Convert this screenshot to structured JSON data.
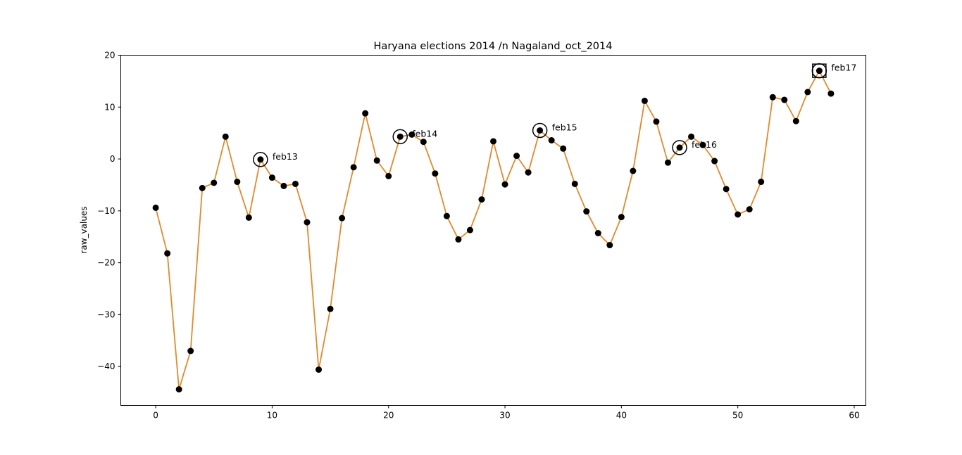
{
  "chart_data": {
    "type": "line",
    "title": "Haryana elections 2014 /n Nagaland_oct_2014",
    "xlabel": "",
    "ylabel": "raw_values",
    "xlim": [
      -3,
      61
    ],
    "ylim": [
      -47.5,
      20
    ],
    "xticks": [
      0,
      10,
      20,
      30,
      40,
      50,
      60
    ],
    "yticks": [
      -40,
      -30,
      -20,
      -10,
      0,
      10,
      20
    ],
    "grid": false,
    "colors": {
      "line": "#e08a2f",
      "marker": "#000000",
      "frame": "#000000"
    },
    "series": [
      {
        "x": [
          0,
          1,
          2,
          3,
          4,
          5,
          6,
          7,
          8,
          9,
          10,
          11,
          12,
          13,
          14,
          15,
          16,
          17,
          18,
          19,
          20,
          21,
          22,
          23,
          24,
          25,
          26,
          27,
          28,
          29,
          30,
          31,
          32,
          33,
          34,
          35,
          36,
          37,
          38,
          39,
          40,
          41,
          42,
          43,
          44,
          45,
          46,
          47,
          48,
          49,
          50,
          51,
          52,
          53,
          54,
          55,
          56,
          57,
          58
        ],
        "y": [
          -9.4,
          -18.2,
          -44.4,
          -37.0,
          -5.6,
          -4.6,
          4.3,
          -4.4,
          -11.3,
          -0.1,
          -3.6,
          -5.2,
          -4.8,
          -12.2,
          -40.6,
          -28.9,
          -11.4,
          -1.6,
          8.8,
          -0.3,
          -3.3,
          4.3,
          4.7,
          3.3,
          -2.8,
          -11.0,
          -15.5,
          -13.7,
          -7.8,
          3.4,
          -4.9,
          0.6,
          -2.6,
          5.5,
          3.6,
          2.0,
          -4.8,
          -10.1,
          -14.3,
          -16.6,
          -11.2,
          -2.3,
          11.2,
          7.2,
          -0.7,
          2.2,
          4.3,
          2.7,
          -0.4,
          -5.8,
          -10.7,
          -9.7,
          -4.4,
          11.9,
          11.4,
          7.3,
          12.9,
          17.0,
          12.6
        ]
      }
    ],
    "annotations": [
      {
        "x": 9,
        "y": -0.1,
        "label": "feb13",
        "marker": "circle"
      },
      {
        "x": 21,
        "y": 4.3,
        "label": "feb14",
        "marker": "circle"
      },
      {
        "x": 33,
        "y": 5.5,
        "label": "feb15",
        "marker": "circle"
      },
      {
        "x": 45,
        "y": 2.2,
        "label": "feb16",
        "marker": "circle"
      },
      {
        "x": 57,
        "y": 17.0,
        "label": "feb17",
        "marker": "circle-square"
      }
    ]
  }
}
